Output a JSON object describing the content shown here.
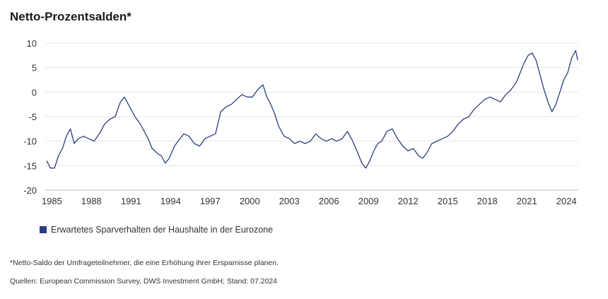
{
  "chart_data": {
    "type": "line",
    "title": "Netto-Prozentsalden*",
    "xlabel": "",
    "ylabel": "",
    "xlim": [
      1984.5,
      2024.9
    ],
    "ylim": [
      -20,
      10
    ],
    "y_ticks": [
      10,
      5,
      0,
      -5,
      -10,
      -15,
      -20
    ],
    "x_ticks": [
      1985,
      1988,
      1991,
      1994,
      1997,
      2000,
      2003,
      2006,
      2009,
      2012,
      2015,
      2018,
      2021,
      2024
    ],
    "grid": "horizontal",
    "legend_position": "bottom-left",
    "series": [
      {
        "name": "Erwartetes Sparverhalten der Haushalte in der Eurozone",
        "color": "#2b3f7e",
        "points": [
          [
            1984.6,
            -14.0
          ],
          [
            1984.9,
            -15.5
          ],
          [
            1985.2,
            -15.5
          ],
          [
            1985.5,
            -13.0
          ],
          [
            1985.8,
            -11.5
          ],
          [
            1986.1,
            -9.0
          ],
          [
            1986.4,
            -7.5
          ],
          [
            1986.7,
            -10.5
          ],
          [
            1987.0,
            -9.5
          ],
          [
            1987.4,
            -9.0
          ],
          [
            1987.8,
            -9.5
          ],
          [
            1988.2,
            -10.0
          ],
          [
            1988.6,
            -8.5
          ],
          [
            1989.0,
            -6.5
          ],
          [
            1989.4,
            -5.5
          ],
          [
            1989.8,
            -5.0
          ],
          [
            1990.2,
            -2.0
          ],
          [
            1990.5,
            -1.0
          ],
          [
            1990.9,
            -3.0
          ],
          [
            1991.3,
            -5.0
          ],
          [
            1991.7,
            -6.5
          ],
          [
            1992.0,
            -8.0
          ],
          [
            1992.3,
            -9.5
          ],
          [
            1992.6,
            -11.5
          ],
          [
            1993.0,
            -12.5
          ],
          [
            1993.3,
            -13.0
          ],
          [
            1993.6,
            -14.5
          ],
          [
            1993.9,
            -13.5
          ],
          [
            1994.3,
            -11.0
          ],
          [
            1994.7,
            -9.5
          ],
          [
            1995.0,
            -8.5
          ],
          [
            1995.4,
            -9.0
          ],
          [
            1995.8,
            -10.5
          ],
          [
            1996.2,
            -11.0
          ],
          [
            1996.6,
            -9.5
          ],
          [
            1997.0,
            -9.0
          ],
          [
            1997.4,
            -8.5
          ],
          [
            1997.8,
            -4.0
          ],
          [
            1998.2,
            -3.0
          ],
          [
            1998.6,
            -2.5
          ],
          [
            1999.0,
            -1.5
          ],
          [
            1999.4,
            -0.5
          ],
          [
            1999.8,
            -1.0
          ],
          [
            2000.2,
            -1.0
          ],
          [
            2000.6,
            0.5
          ],
          [
            2001.0,
            1.5
          ],
          [
            2001.3,
            -1.0
          ],
          [
            2001.6,
            -2.5
          ],
          [
            2001.9,
            -4.5
          ],
          [
            2002.2,
            -7.0
          ],
          [
            2002.6,
            -9.0
          ],
          [
            2003.0,
            -9.5
          ],
          [
            2003.4,
            -10.5
          ],
          [
            2003.8,
            -10.0
          ],
          [
            2004.2,
            -10.5
          ],
          [
            2004.6,
            -10.0
          ],
          [
            2005.0,
            -8.5
          ],
          [
            2005.4,
            -9.5
          ],
          [
            2005.8,
            -10.0
          ],
          [
            2006.2,
            -9.5
          ],
          [
            2006.6,
            -10.0
          ],
          [
            2007.0,
            -9.5
          ],
          [
            2007.4,
            -8.0
          ],
          [
            2007.8,
            -10.0
          ],
          [
            2008.2,
            -12.5
          ],
          [
            2008.5,
            -14.5
          ],
          [
            2008.8,
            -15.5
          ],
          [
            2009.1,
            -14.0
          ],
          [
            2009.4,
            -12.0
          ],
          [
            2009.7,
            -10.5
          ],
          [
            2010.0,
            -10.0
          ],
          [
            2010.4,
            -8.0
          ],
          [
            2010.8,
            -7.5
          ],
          [
            2011.2,
            -9.5
          ],
          [
            2011.6,
            -11.0
          ],
          [
            2012.0,
            -12.0
          ],
          [
            2012.4,
            -11.5
          ],
          [
            2012.8,
            -13.0
          ],
          [
            2013.1,
            -13.5
          ],
          [
            2013.4,
            -12.5
          ],
          [
            2013.8,
            -10.5
          ],
          [
            2014.2,
            -10.0
          ],
          [
            2014.6,
            -9.5
          ],
          [
            2015.0,
            -9.0
          ],
          [
            2015.4,
            -8.0
          ],
          [
            2015.8,
            -6.5
          ],
          [
            2016.2,
            -5.5
          ],
          [
            2016.6,
            -5.0
          ],
          [
            2017.0,
            -3.5
          ],
          [
            2017.4,
            -2.5
          ],
          [
            2017.8,
            -1.5
          ],
          [
            2018.2,
            -1.0
          ],
          [
            2018.6,
            -1.5
          ],
          [
            2019.0,
            -2.0
          ],
          [
            2019.4,
            -0.5
          ],
          [
            2019.8,
            0.5
          ],
          [
            2020.2,
            2.0
          ],
          [
            2020.5,
            4.0
          ],
          [
            2020.8,
            6.0
          ],
          [
            2021.1,
            7.5
          ],
          [
            2021.4,
            8.0
          ],
          [
            2021.7,
            6.5
          ],
          [
            2022.0,
            3.5
          ],
          [
            2022.3,
            0.5
          ],
          [
            2022.6,
            -2.0
          ],
          [
            2022.9,
            -4.0
          ],
          [
            2023.2,
            -2.5
          ],
          [
            2023.5,
            0.0
          ],
          [
            2023.8,
            2.5
          ],
          [
            2024.1,
            4.0
          ],
          [
            2024.4,
            7.0
          ],
          [
            2024.7,
            8.5
          ],
          [
            2024.85,
            6.5
          ]
        ]
      }
    ]
  },
  "footnotes": [
    "*Netto-Saldo der Umfrageteilnehmer, die eine Erhöhung ihrer Ersparnisse planen.",
    "Quellen: European Commission Survey, DWS Investment GmbH; Stand: 07.2024"
  ]
}
